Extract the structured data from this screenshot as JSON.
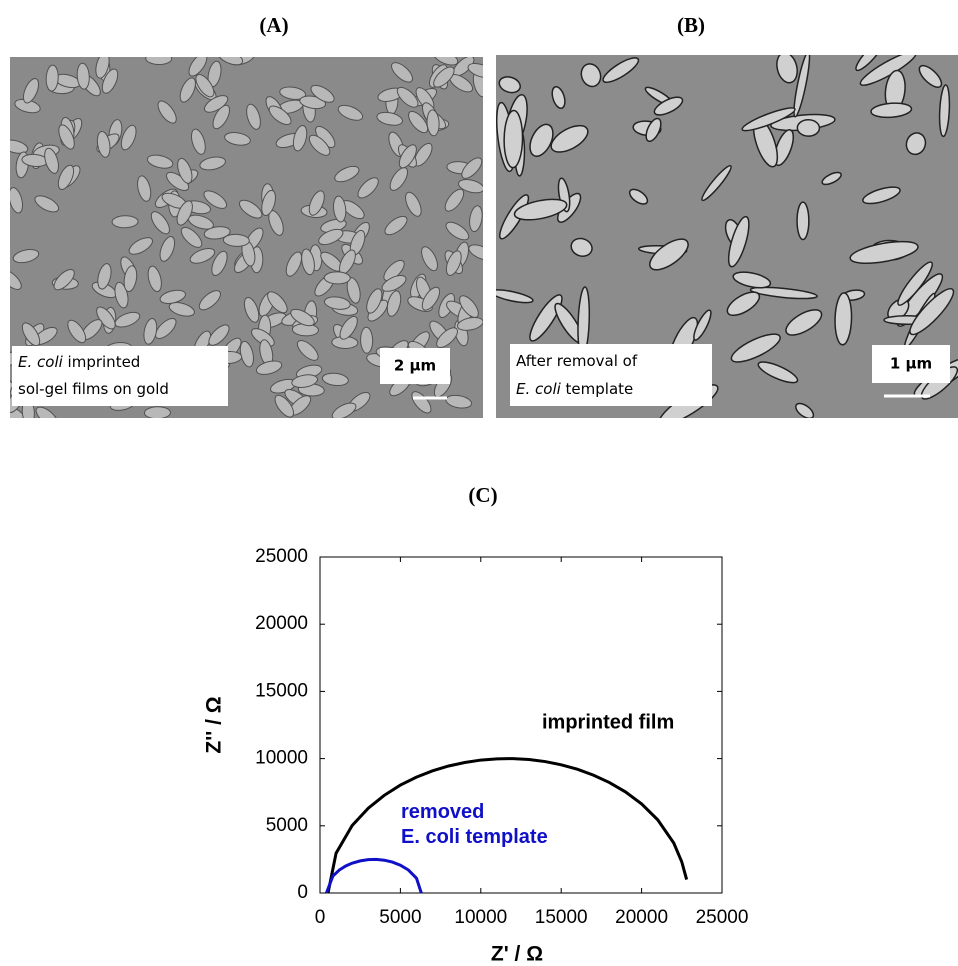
{
  "panels": [
    {
      "label": "(A)",
      "caption": [
        [
          "E. coli",
          " imprinted"
        ],
        [
          "sol-gel films on gold"
        ]
      ],
      "scale_bar": "2 µm"
    },
    {
      "label": "(B)",
      "caption": [
        [
          "After removal of"
        ],
        [
          "E. coli",
          " template"
        ]
      ],
      "scale_bar": "1 µm"
    }
  ],
  "chart_data": {
    "type": "line",
    "title": "(C)",
    "xlabel": "Z' / Ω",
    "ylabel": "Z'' / Ω",
    "xlim": [
      0,
      25000
    ],
    "ylim": [
      0,
      25000
    ],
    "xticks": [
      0,
      5000,
      10000,
      15000,
      20000,
      25000
    ],
    "yticks": [
      0,
      5000,
      10000,
      15000,
      20000,
      25000
    ],
    "series": [
      {
        "name": "imprinted film",
        "color": "#000000",
        "x": [
          500,
          1000,
          2000,
          3000,
          4000,
          5000,
          6000,
          7000,
          8000,
          9000,
          10000,
          11000,
          12000,
          13000,
          14000,
          15000,
          16000,
          17000,
          18000,
          19000,
          20000,
          21000,
          22000,
          22500,
          22800
        ],
        "values": [
          0,
          2960,
          5020,
          6310,
          7270,
          8030,
          8620,
          9090,
          9450,
          9710,
          9890,
          9980,
          10000,
          9930,
          9780,
          9540,
          9210,
          8770,
          8220,
          7520,
          6630,
          5450,
          3720,
          2310,
          1000
        ]
      },
      {
        "name": "removed\nE. coli template",
        "color": "#1010c8",
        "x": [
          400,
          800,
          1200,
          1600,
          2000,
          2500,
          3000,
          3500,
          4000,
          4500,
          5000,
          5500,
          6000,
          6300
        ],
        "values": [
          0,
          1260,
          1710,
          2010,
          2220,
          2390,
          2480,
          2500,
          2440,
          2300,
          2070,
          1710,
          1100,
          0
        ]
      }
    ]
  }
}
